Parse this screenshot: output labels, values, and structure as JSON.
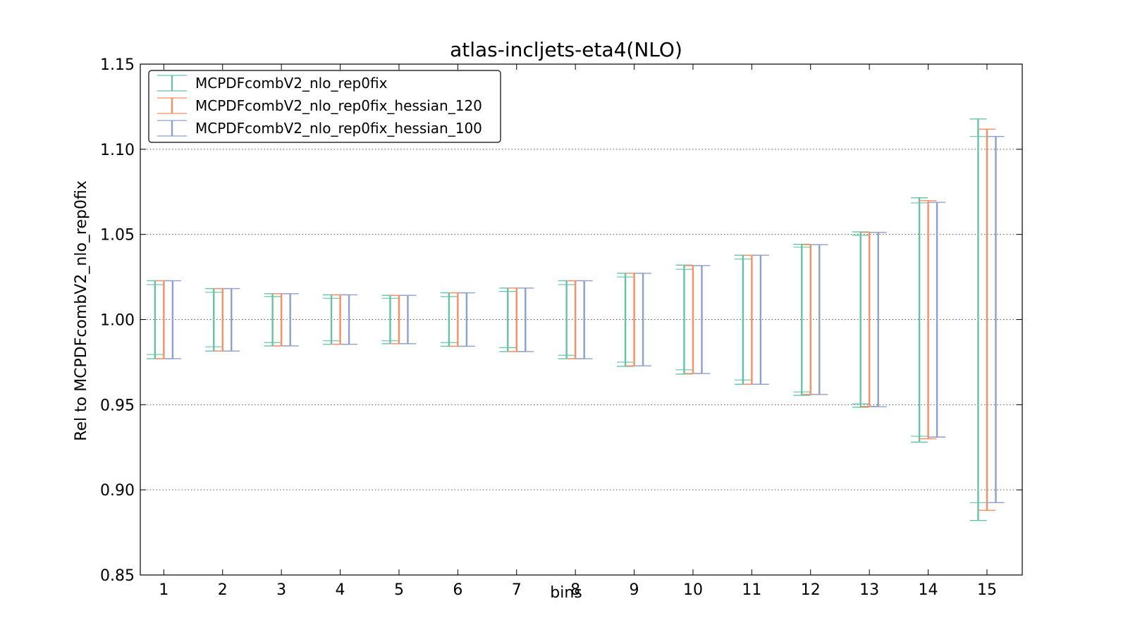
{
  "chart_data": {
    "type": "errorbar",
    "title": "atlas-incljets-eta4(NLO)",
    "xlabel": "bins",
    "ylabel": "Rel to MCPDFcombV2_nlo_rep0fix",
    "categories": [
      "1",
      "2",
      "3",
      "4",
      "5",
      "6",
      "7",
      "8",
      "9",
      "10",
      "11",
      "12",
      "13",
      "14",
      "15"
    ],
    "xlim": [
      0.6,
      15.6
    ],
    "ylim": [
      0.85,
      1.15
    ],
    "yticks": [
      "0.85",
      "0.90",
      "0.95",
      "1.00",
      "1.05",
      "1.10",
      "1.15"
    ],
    "grid": "horizontal-dotted",
    "legend_position": "upper-left",
    "series": [
      {
        "name": "MCPDFcombV2_nlo_rep0fix",
        "color": "#66c2a5",
        "offset": -0.15,
        "low": [
          0.977,
          0.9815,
          0.9845,
          0.9855,
          0.9858,
          0.9843,
          0.9812,
          0.977,
          0.9725,
          0.968,
          0.962,
          0.9555,
          0.9485,
          0.928,
          0.882
        ],
        "high": [
          1.0228,
          1.0182,
          1.0152,
          1.0145,
          1.0142,
          1.0157,
          1.0185,
          1.0228,
          1.0272,
          1.032,
          1.0378,
          1.0442,
          1.0515,
          1.0715,
          1.1178
        ],
        "inner_low": [
          0.9795,
          0.984,
          0.9865,
          0.9875,
          0.9875,
          0.9865,
          0.9835,
          0.979,
          0.975,
          0.9705,
          0.9645,
          0.9575,
          0.9505,
          0.9315,
          0.8925
        ],
        "inner_high": [
          1.0205,
          1.016,
          1.0135,
          1.0125,
          1.0125,
          1.0135,
          1.0165,
          1.0205,
          1.025,
          1.0295,
          1.0355,
          1.0425,
          1.0495,
          1.0685,
          1.1075
        ]
      },
      {
        "name": "MCPDFcombV2_nlo_rep0fix_hessian_120",
        "color": "#fc8d62",
        "offset": 0.0,
        "low": [
          0.977,
          0.9815,
          0.9845,
          0.9855,
          0.9858,
          0.9843,
          0.9812,
          0.977,
          0.9728,
          0.9683,
          0.962,
          0.956,
          0.949,
          0.93,
          0.888
        ],
        "high": [
          1.0228,
          1.0182,
          1.0152,
          1.0145,
          1.0142,
          1.0157,
          1.0185,
          1.0228,
          1.0272,
          1.0317,
          1.0378,
          1.044,
          1.0512,
          1.0698,
          1.1118
        ]
      },
      {
        "name": "MCPDFcombV2_nlo_rep0fix_hessian_100",
        "color": "#8da0cb",
        "offset": 0.15,
        "low": [
          0.977,
          0.9815,
          0.9845,
          0.9855,
          0.9858,
          0.9843,
          0.9812,
          0.977,
          0.9728,
          0.9683,
          0.962,
          0.956,
          0.9488,
          0.931,
          0.8925
        ],
        "high": [
          1.0228,
          1.0182,
          1.0152,
          1.0145,
          1.0142,
          1.0157,
          1.0185,
          1.0228,
          1.0272,
          1.0317,
          1.0378,
          1.044,
          1.0512,
          1.0688,
          1.1075
        ]
      }
    ]
  }
}
